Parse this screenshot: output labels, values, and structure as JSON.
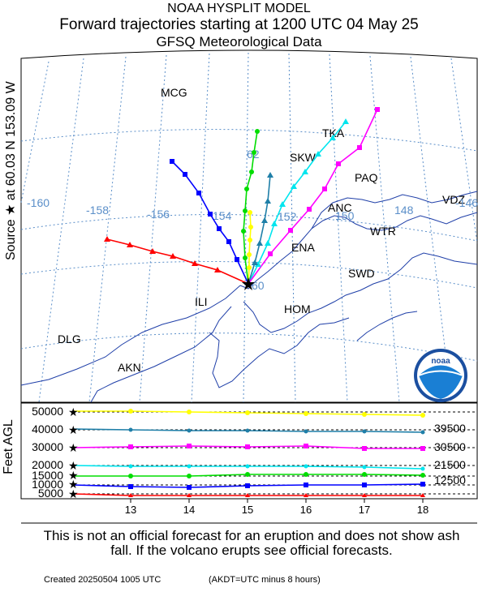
{
  "header": {
    "model": "NOAA HYSPLIT MODEL",
    "title": "Forward trajectories starting at 1200 UTC 04 May 25",
    "data_source": "GFSQ Meteorological Data"
  },
  "source_label": "Source ★  at   60.03 N  153.09 W",
  "map": {
    "longitude_labels": [
      "-160",
      "-158",
      "-156",
      "154",
      "152",
      "150",
      "148",
      "-146"
    ],
    "latitude_labels": [
      "62",
      "60"
    ],
    "places": [
      "MCG",
      "TKA",
      "SKW",
      "PAQ",
      "ANC",
      "VDZ",
      "WTR",
      "ENA",
      "SWD",
      "ILI",
      "HOM",
      "DLG",
      "AKN"
    ],
    "logo_text": "noaa"
  },
  "trajectories": [
    {
      "color": "#ff0000",
      "start_height_ft": 5000,
      "marker": "triangle"
    },
    {
      "color": "#0000ff",
      "start_height_ft": 10000,
      "marker": "square"
    },
    {
      "color": "#00dd00",
      "start_height_ft": 15000,
      "marker": "circle"
    },
    {
      "color": "#00e5ee",
      "start_height_ft": 20000,
      "marker": "triangle"
    },
    {
      "color": "#ff00ff",
      "start_height_ft": 30000,
      "marker": "square"
    },
    {
      "color": "#1f7fa8",
      "start_height_ft": 40000,
      "marker": "triangle"
    },
    {
      "color": "#ffff00",
      "start_height_ft": 50000,
      "marker": "circle"
    }
  ],
  "height_panel": {
    "ylabel": "Feet AGL",
    "left_ticks": [
      "50000",
      "40000",
      "30000",
      "20000",
      "15000",
      "10000",
      "5000"
    ],
    "right_ticks": [
      "39500",
      "30500",
      "21500",
      "12500"
    ],
    "x_ticks": [
      "13",
      "14",
      "15",
      "16",
      "17",
      "18"
    ]
  },
  "disclaimer": "This is not an official forecast for an eruption and does not show ash fall. If the volcano erupts see official forecasts.",
  "footer": {
    "created": "Created 20250504 1005 UTC",
    "note": "(AKDT=UTC minus 8 hours)"
  }
}
